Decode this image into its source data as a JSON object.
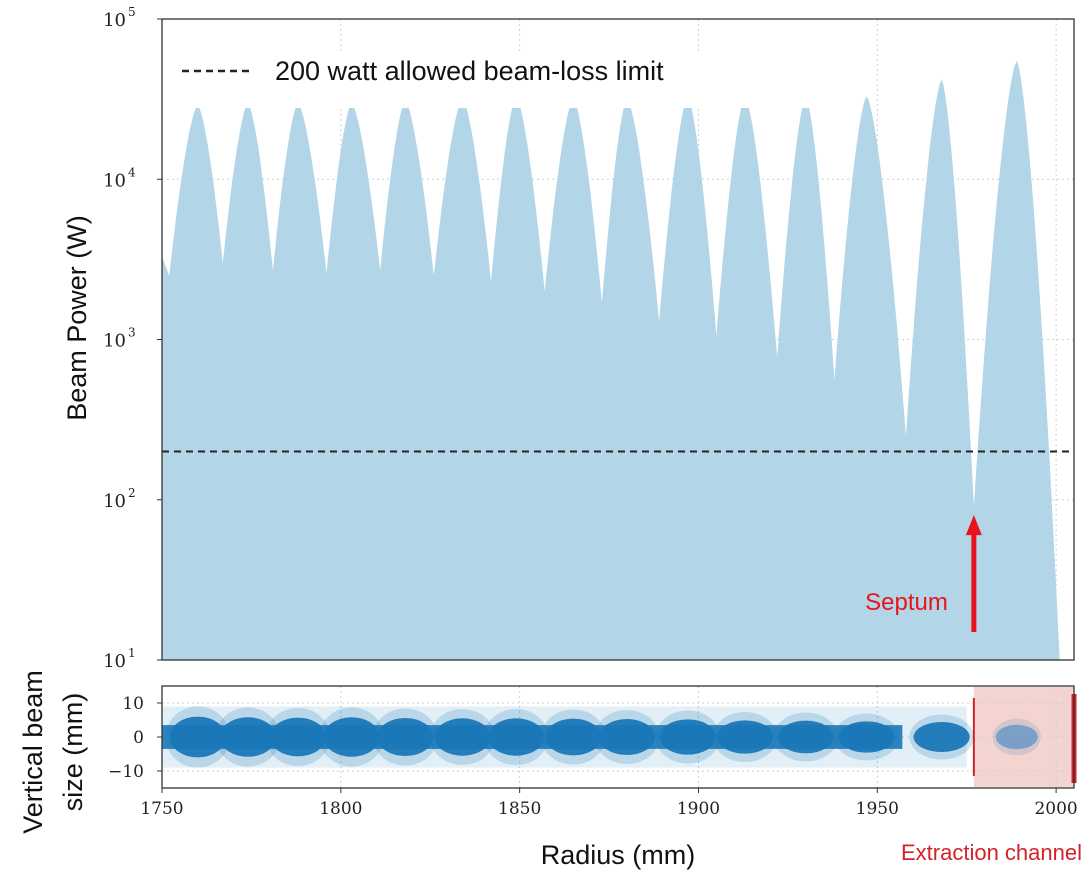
{
  "chart_data": [
    {
      "type": "area",
      "title": "",
      "xlabel": "",
      "ylabel": "Beam Power (W)",
      "xlim": [
        1750,
        2005
      ],
      "ylim": [
        10,
        100000
      ],
      "yscale": "log",
      "grid": true,
      "fill_color": "#b3d5e8",
      "y_tick_labels": [
        {
          "value": 10,
          "mantissa": "10",
          "exp": "1"
        },
        {
          "value": 100,
          "mantissa": "10",
          "exp": "2"
        },
        {
          "value": 1000,
          "mantissa": "10",
          "exp": "3"
        },
        {
          "value": 10000,
          "mantissa": "10",
          "exp": "4"
        },
        {
          "value": 100000,
          "mantissa": "10",
          "exp": "5"
        }
      ],
      "turn_peaks": {
        "radius_mm": [
          1760,
          1774,
          1788,
          1803,
          1818,
          1834,
          1849,
          1865,
          1880,
          1897,
          1913,
          1930,
          1947,
          1968,
          1989
        ],
        "power_W": [
          29000,
          30000,
          30000,
          30000,
          31000,
          32000,
          33000,
          32000,
          32000,
          33000,
          33000,
          33000,
          33000,
          42000,
          55000
        ]
      },
      "turn_minima": {
        "radius_mm": [
          1750,
          1752,
          1767,
          1781,
          1796,
          1811,
          1826,
          1842,
          1857,
          1873,
          1889,
          1905,
          1922,
          1938,
          1958,
          1977,
          2001
        ],
        "power_W": [
          3300,
          2500,
          3000,
          2700,
          2600,
          2700,
          2500,
          2300,
          2000,
          1700,
          1300,
          1050,
          770,
          560,
          250,
          90,
          10
        ]
      },
      "reference_line": {
        "value": 200,
        "style": "dashed",
        "color": "#222222",
        "label": "200 watt allowed beam-loss limit"
      },
      "annotations": [
        {
          "text": "Septum",
          "x": 1977,
          "y": 90,
          "color": "#e8141c"
        }
      ]
    },
    {
      "type": "scatter",
      "title": "",
      "xlabel": "Radius (mm)",
      "ylabel_lines": [
        "Vertical beam",
        "size (mm)"
      ],
      "xlim": [
        1750,
        2005
      ],
      "ylim": [
        -15,
        15
      ],
      "grid": true,
      "x_ticks": [
        1750,
        1800,
        1850,
        1900,
        1950,
        2000
      ],
      "y_ticks": [
        10,
        0,
        -10
      ],
      "point_color": "#1a78b8",
      "turns": {
        "center_mm": [
          1760,
          1774,
          1788,
          1803,
          1818,
          1834,
          1849,
          1865,
          1880,
          1897,
          1913,
          1930,
          1947,
          1968,
          1989
        ],
        "half_height_mm": [
          6.0,
          5.8,
          5.7,
          5.8,
          5.6,
          5.5,
          5.5,
          5.4,
          5.3,
          5.2,
          4.9,
          4.8,
          4.6,
          4.4,
          3.6
        ]
      },
      "extraction_channel": {
        "x_start": 1977,
        "x_end": 2005,
        "label": "Extraction channel",
        "color": "#d3222a",
        "fill": "#f3d4d1"
      }
    }
  ]
}
